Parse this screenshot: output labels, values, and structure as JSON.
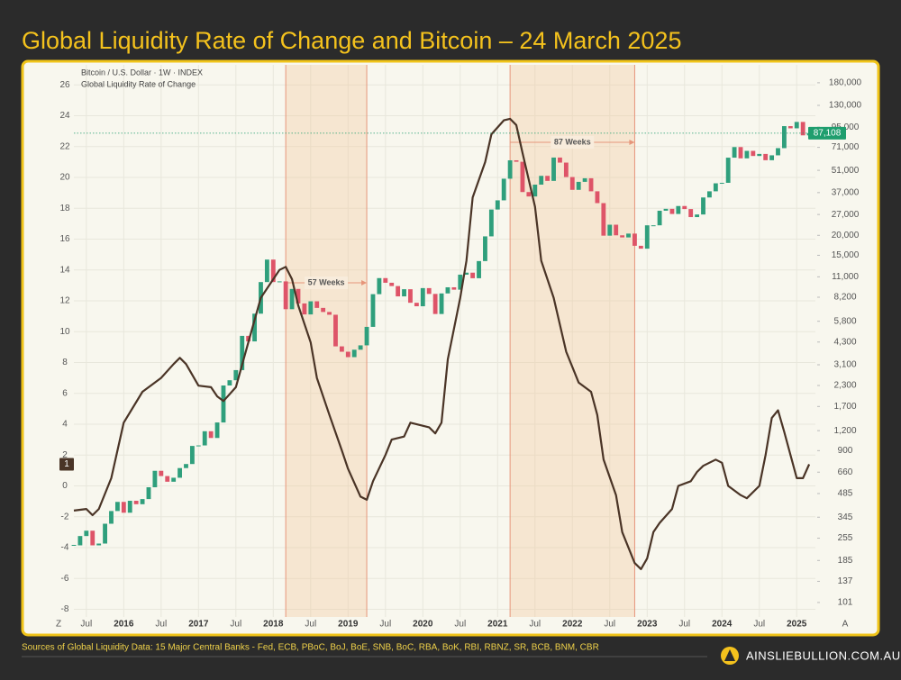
{
  "chart_data": {
    "type": "combo",
    "title": "Global Liquidity Rate of Change and Bitcoin – 24 March 2025",
    "xlim": [
      "2015-05",
      "2025-04"
    ],
    "xticks": [
      {
        "value": "2015-07",
        "label": "Jul"
      },
      {
        "value": "2016-01",
        "label": "2016"
      },
      {
        "value": "2016-07",
        "label": "Jul"
      },
      {
        "value": "2017-01",
        "label": "2017"
      },
      {
        "value": "2017-07",
        "label": "Jul"
      },
      {
        "value": "2018-01",
        "label": "2018"
      },
      {
        "value": "2018-07",
        "label": "Jul"
      },
      {
        "value": "2019-01",
        "label": "2019"
      },
      {
        "value": "2019-07",
        "label": "Jul"
      },
      {
        "value": "2020-01",
        "label": "2020"
      },
      {
        "value": "2020-07",
        "label": "Jul"
      },
      {
        "value": "2021-01",
        "label": "2021"
      },
      {
        "value": "2021-07",
        "label": "Jul"
      },
      {
        "value": "2022-01",
        "label": "2022"
      },
      {
        "value": "2022-07",
        "label": "Jul"
      },
      {
        "value": "2023-01",
        "label": "2023"
      },
      {
        "value": "2023-07",
        "label": "Jul"
      },
      {
        "value": "2024-01",
        "label": "2024"
      },
      {
        "value": "2024-07",
        "label": "Jul"
      },
      {
        "value": "2025-01",
        "label": "2025"
      }
    ],
    "ylim": [
      -8.5,
      27.3
    ],
    "yticks": [
      -8,
      -6,
      -4,
      -2,
      0,
      2,
      4,
      6,
      8,
      10,
      12,
      14,
      16,
      18,
      20,
      22,
      24,
      26
    ],
    "y2lim": [
      82,
      233000
    ],
    "y2_log": true,
    "y2ticks": [
      101,
      137,
      185,
      255,
      345,
      485,
      660,
      900,
      {
        "value": 1200,
        "label": "1,200"
      },
      {
        "value": 1700,
        "label": "1,700"
      },
      {
        "value": 2300,
        "label": "2,300"
      },
      {
        "value": 3100,
        "label": "3,100"
      },
      {
        "value": 4300,
        "label": "4,300"
      },
      {
        "value": 5800,
        "label": "5,800"
      },
      {
        "value": 8200,
        "label": "8,200"
      },
      {
        "value": 11000,
        "label": "11,000"
      },
      {
        "value": 15000,
        "label": "15,000"
      },
      {
        "value": 20000,
        "label": "20,000"
      },
      {
        "value": 27000,
        "label": "27,000"
      },
      {
        "value": 37000,
        "label": "37,000"
      },
      {
        "value": 51000,
        "label": "51,000"
      },
      {
        "value": 71000,
        "label": "71,000"
      },
      {
        "value": 95000,
        "label": "95,000"
      },
      {
        "value": 130000,
        "label": "130,000"
      },
      {
        "value": 180000,
        "label": "180,000"
      }
    ],
    "grid": true,
    "corner_labels": [
      "Z",
      "A"
    ],
    "series": [
      {
        "name": "Bitcoin / U.S. Dollar · 1W · INDEX",
        "type": "candlestick",
        "axis": "y2",
        "up_color": "#2f9f7c",
        "down_color": "#de5468",
        "x": [
          "2015-05",
          "2015-06",
          "2015-07",
          "2015-08",
          "2015-09",
          "2015-10",
          "2015-11",
          "2015-12",
          "2016-01",
          "2016-02",
          "2016-03",
          "2016-04",
          "2016-05",
          "2016-06",
          "2016-07",
          "2016-08",
          "2016-09",
          "2016-10",
          "2016-11",
          "2016-12",
          "2017-01",
          "2017-02",
          "2017-03",
          "2017-04",
          "2017-05",
          "2017-06",
          "2017-07",
          "2017-08",
          "2017-09",
          "2017-10",
          "2017-11",
          "2017-12",
          "2018-01",
          "2018-02",
          "2018-03",
          "2018-04",
          "2018-05",
          "2018-06",
          "2018-07",
          "2018-08",
          "2018-09",
          "2018-10",
          "2018-11",
          "2018-12",
          "2019-01",
          "2019-02",
          "2019-03",
          "2019-04",
          "2019-05",
          "2019-06",
          "2019-07",
          "2019-08",
          "2019-09",
          "2019-10",
          "2019-11",
          "2019-12",
          "2020-01",
          "2020-02",
          "2020-03",
          "2020-04",
          "2020-05",
          "2020-06",
          "2020-07",
          "2020-08",
          "2020-09",
          "2020-10",
          "2020-11",
          "2020-12",
          "2021-01",
          "2021-02",
          "2021-03",
          "2021-04",
          "2021-05",
          "2021-06",
          "2021-07",
          "2021-08",
          "2021-09",
          "2021-10",
          "2021-11",
          "2021-12",
          "2022-01",
          "2022-02",
          "2022-03",
          "2022-04",
          "2022-05",
          "2022-06",
          "2022-07",
          "2022-08",
          "2022-09",
          "2022-10",
          "2022-11",
          "2022-12",
          "2023-01",
          "2023-02",
          "2023-03",
          "2023-04",
          "2023-05",
          "2023-06",
          "2023-07",
          "2023-08",
          "2023-09",
          "2023-10",
          "2023-11",
          "2023-12",
          "2024-01",
          "2024-02",
          "2024-03",
          "2024-04",
          "2024-05",
          "2024-06",
          "2024-07",
          "2024-08",
          "2024-09",
          "2024-10",
          "2024-11",
          "2024-12",
          "2025-01",
          "2025-02",
          "2025-03"
        ],
        "values": [
          230,
          263,
          284,
          230,
          236,
          314,
          377,
          430,
          368,
          437,
          416,
          448,
          531,
          673,
          624,
          575,
          609,
          700,
          742,
          963,
          970,
          1190,
          1080,
          1350,
          2300,
          2480,
          2870,
          4700,
          4340,
          6470,
          10200,
          14100,
          10200,
          10300,
          6900,
          9240,
          7500,
          6400,
          7730,
          7030,
          6630,
          6370,
          4040,
          3740,
          3460,
          3850,
          4100,
          5350,
          8570,
          10800,
          10100,
          9630,
          8300,
          9200,
          7570,
          7200,
          9350,
          8600,
          6440,
          8660,
          9460,
          9140,
          11350,
          11680,
          10780,
          13800,
          19700,
          29000,
          33100,
          45200,
          58900,
          57700,
          37300,
          35000,
          41500,
          47100,
          43800,
          61300,
          57000,
          46300,
          38500,
          43200,
          45500,
          37700,
          31800,
          19900,
          23300,
          20000,
          19400,
          20500,
          17200,
          16500,
          23100,
          23100,
          28500,
          29300,
          27200,
          30500,
          29200,
          26000,
          27000,
          34500,
          37700,
          42300,
          42600,
          61200,
          71300,
          60600,
          67500,
          62700,
          64600,
          59000,
          63300,
          70200,
          96400,
          93400,
          102400,
          84400,
          87108
        ]
      },
      {
        "name": "Global Liquidity Rate of Change",
        "type": "line",
        "color": "#4a3426",
        "x": [
          "2015-05",
          "2015-07",
          "2015-08",
          "2015-09",
          "2015-11",
          "2016-01",
          "2016-04",
          "2016-06",
          "2016-07",
          "2016-09",
          "2016-10",
          "2016-11",
          "2017-01",
          "2017-03",
          "2017-04",
          "2017-05",
          "2017-07",
          "2017-09",
          "2017-11",
          "2018-02",
          "2018-03",
          "2018-04",
          "2018-05",
          "2018-07",
          "2018-08",
          "2018-10",
          "2018-12",
          "2019-01",
          "2019-03",
          "2019-04",
          "2019-05",
          "2019-07",
          "2019-08",
          "2019-10",
          "2019-11",
          "2020-02",
          "2020-03",
          "2020-04",
          "2020-05",
          "2020-07",
          "2020-08",
          "2020-09",
          "2020-11",
          "2020-12",
          "2021-02",
          "2021-03",
          "2021-04",
          "2021-05",
          "2021-07",
          "2021-08",
          "2021-10",
          "2021-12",
          "2022-02",
          "2022-04",
          "2022-05",
          "2022-06",
          "2022-08",
          "2022-09",
          "2022-11",
          "2022-12",
          "2023-01",
          "2023-02",
          "2023-03",
          "2023-05",
          "2023-06",
          "2023-08",
          "2023-09",
          "2023-10",
          "2023-12",
          "2024-01",
          "2024-02",
          "2024-04",
          "2024-05",
          "2024-07",
          "2024-08",
          "2024-09",
          "2024-10",
          "2024-11",
          "2025-01",
          "2025-02",
          "2025-03"
        ],
        "values": [
          -1.6,
          -1.5,
          -1.9,
          -1.5,
          0.5,
          4.1,
          6.1,
          6.7,
          7.0,
          7.9,
          8.3,
          7.9,
          6.5,
          6.4,
          5.8,
          5.5,
          6.4,
          9.3,
          12.2,
          14.0,
          14.2,
          13.4,
          11.7,
          9.3,
          7.0,
          4.6,
          2.3,
          1.1,
          -0.7,
          -0.9,
          0.3,
          2.0,
          3.0,
          3.2,
          4.1,
          3.8,
          3.4,
          4.1,
          8.2,
          12.2,
          14.6,
          18.7,
          21.0,
          22.8,
          23.7,
          23.8,
          23.4,
          21.6,
          18.1,
          14.6,
          12.2,
          8.7,
          6.7,
          6.1,
          4.6,
          1.7,
          -0.6,
          -3.0,
          -5.0,
          -5.4,
          -4.7,
          -3.0,
          -2.4,
          -1.5,
          0.0,
          0.3,
          0.9,
          1.3,
          1.7,
          1.5,
          0.0,
          -0.6,
          -0.8,
          0.0,
          2.0,
          4.4,
          4.9,
          3.5,
          0.5,
          0.5,
          1.4
        ]
      }
    ],
    "price_line": {
      "value": 87108,
      "label": "87,108",
      "color": "#1f9e6e"
    },
    "current_marker": {
      "value": 1.4,
      "label": "1",
      "color": "#4a3426"
    },
    "spans": [
      {
        "start": "2018-03",
        "end": "2019-04",
        "label": "57 Weeks"
      },
      {
        "start": "2021-03",
        "end": "2022-11",
        "label": "87 Weeks"
      }
    ]
  },
  "footer": {
    "source": "Sources of Global Liquidity Data: 15 Major Central Banks - Fed, ECB, PBoC, BoJ, BoE, SNB, BoC, RBA, BoK, RBI, RBNZ, SR, BCB, BNM, CBR",
    "brand": "AINSLIEBULLION.COM.AU"
  }
}
